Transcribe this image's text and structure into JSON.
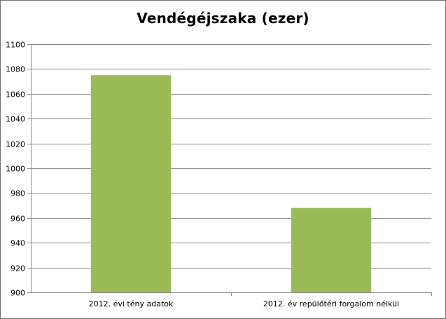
{
  "chart_data": {
    "type": "bar",
    "title": "Vendégéjszaka (ezer)",
    "xlabel": "",
    "ylabel": "",
    "categories": [
      "2012. évi tény adatok",
      "2012. év repülőtéri forgalom nélkül"
    ],
    "values": [
      1075,
      968
    ],
    "ylim": [
      900,
      1100
    ],
    "yticks": [
      900,
      920,
      940,
      960,
      980,
      1000,
      1020,
      1040,
      1060,
      1080,
      1100
    ],
    "grid": true,
    "legend": "none",
    "bar_color": "#9bbb59"
  }
}
